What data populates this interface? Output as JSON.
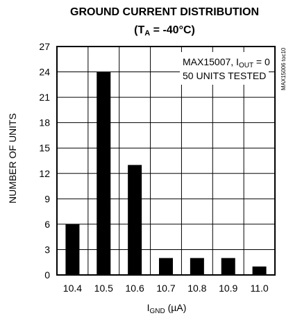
{
  "chart_data": {
    "type": "bar",
    "title": "GROUND CURRENT DISTRIBUTION",
    "subtitle": {
      "prefix": "(T",
      "sub": "A",
      "suffix": " = -40°C)"
    },
    "categories": [
      "10.4",
      "10.5",
      "10.6",
      "10.7",
      "10.8",
      "10.9",
      "11.0"
    ],
    "values": [
      6,
      24,
      13,
      2,
      2,
      2,
      1
    ],
    "ylabel": "NUMBER OF UNITS",
    "xlabel": {
      "main": "I",
      "sub": "GND",
      "suffix": " (µA)"
    },
    "ylim": [
      0,
      27
    ],
    "yticks": [
      "0",
      "3",
      "6",
      "9",
      "12",
      "15",
      "18",
      "21",
      "24",
      "27"
    ],
    "grid": true,
    "annotations": {
      "line1_prefix": "MAX15007, I",
      "line1_sub": "OUT",
      "line1_suffix": " = 0",
      "line2": "50 UNITS TESTED"
    },
    "side_label": "MAX15006 toc10",
    "bar_color": "#000000",
    "grid_color": "#000000"
  }
}
